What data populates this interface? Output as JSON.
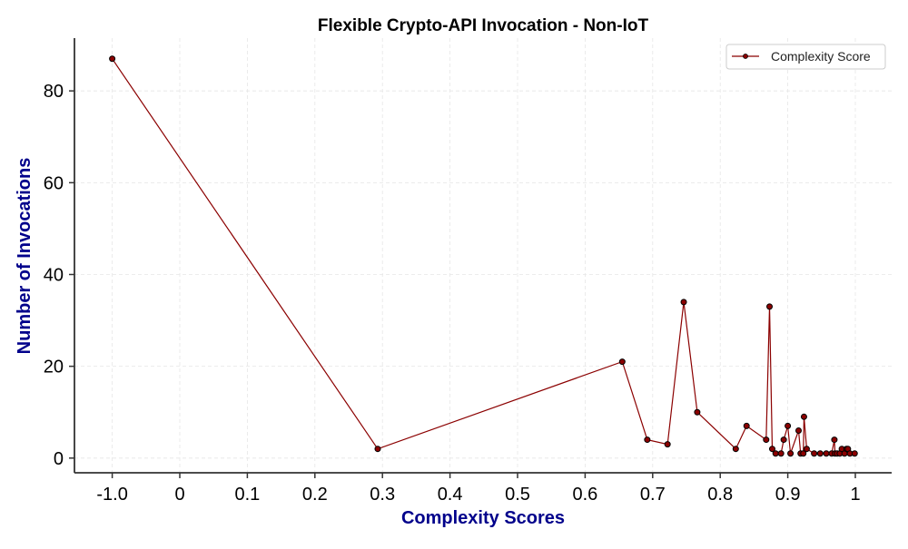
{
  "chart_data": {
    "type": "line",
    "title": "Flexible Crypto-API Invocation - Non-IoT",
    "xlabel": "Complexity Scores",
    "ylabel": "Number of Invocations",
    "x_tick_labels": [
      "-1.0",
      "0",
      "0.1",
      "0.2",
      "0.3",
      "0.4",
      "0.5",
      "0.6",
      "0.7",
      "0.8",
      "0.9",
      "1"
    ],
    "x_tick_values": [
      -1.0,
      0,
      0.1,
      0.2,
      0.3,
      0.4,
      0.5,
      0.6,
      0.7,
      0.8,
      0.9,
      1.0
    ],
    "y_ticks": [
      0,
      20,
      40,
      60,
      80
    ],
    "ylim": [
      -3.2,
      91.5
    ],
    "grid": true,
    "legend_position": "top-right",
    "colors": {
      "line": "#8b0000",
      "marker_edge": "#000000",
      "axis_label": "#00008b",
      "grid": "#e0e0e0"
    },
    "series": [
      {
        "name": "Complexity Score",
        "x": [
          -1.0,
          0.293,
          0.655,
          0.692,
          0.722,
          0.746,
          0.766,
          0.823,
          0.839,
          0.868,
          0.873,
          0.877,
          0.882,
          0.89,
          0.894,
          0.9,
          0.904,
          0.916,
          0.919,
          0.923,
          0.924,
          0.928,
          0.939,
          0.948,
          0.957,
          0.965,
          0.969,
          0.97,
          0.973,
          0.977,
          0.98,
          0.984,
          0.987,
          0.989,
          0.992,
          0.999
        ],
        "y": [
          87,
          2,
          21,
          4,
          3,
          34,
          10,
          2,
          7,
          4,
          33,
          2,
          1,
          1,
          4,
          7,
          1,
          6,
          1,
          1,
          9,
          2,
          1,
          1,
          1,
          1,
          4,
          1,
          1,
          1,
          2,
          1,
          2,
          2,
          1,
          1
        ]
      }
    ]
  }
}
